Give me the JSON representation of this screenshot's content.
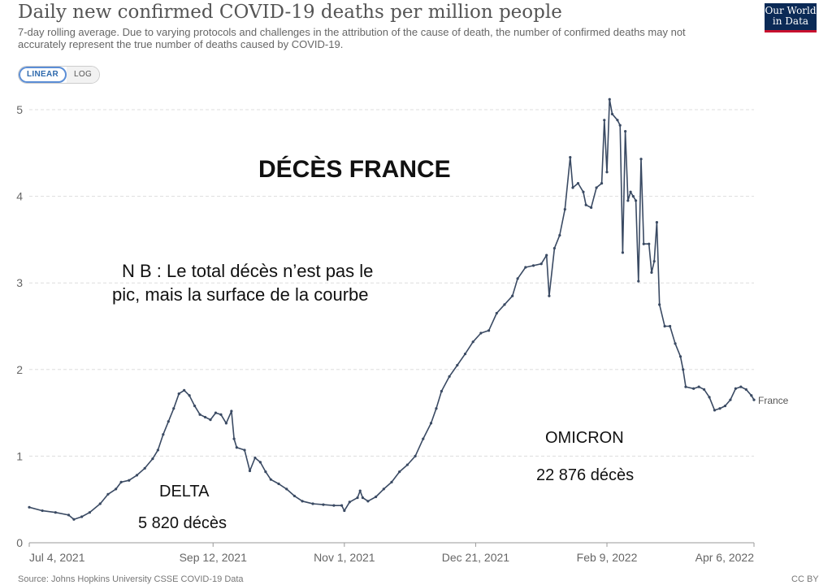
{
  "header": {
    "title": "Daily new confirmed COVID-19 deaths per million people",
    "subtitle": "7-day rolling average. Due to varying protocols and challenges in the attribution of the cause of death, the number of confirmed deaths may not accurately represent the true number of deaths caused by COVID-19.",
    "logo_line1": "Our World",
    "logo_line2": "in Data"
  },
  "scale_toggle": {
    "linear_label": "LINEAR",
    "log_label": "LOG",
    "selected": "linear"
  },
  "footer": {
    "source": "Source: Johns Hopkins University CSSE COVID-19 Data",
    "license": "CC BY"
  },
  "annotations": {
    "main_title": "DÉCÈS  FRANCE",
    "note_line1": "N B : Le total décès n’est pas le",
    "note_line2": "pic, mais la surface de la courbe",
    "delta_label": "DELTA",
    "delta_total": "5 820 décès",
    "omicron_label": "OMICRON",
    "omicron_total": "22 876 décès"
  },
  "colors": {
    "line": "#3a4a63",
    "grid": "#dddddd",
    "axis_text": "#666666",
    "logo_bg": "#0b2a56",
    "logo_accent": "#c8102e",
    "toggle_active": "#2f6aad"
  },
  "chart_data": {
    "type": "line",
    "title": "Daily new confirmed COVID-19 deaths per million people",
    "xlabel": "",
    "ylabel": "",
    "ylim": [
      0,
      5
    ],
    "yticks": [
      0,
      1,
      2,
      3,
      4,
      5
    ],
    "grid": true,
    "x_tick_labels": [
      "Jul 4, 2021",
      "Sep 12, 2021",
      "Nov 1, 2021",
      "Dec 21, 2021",
      "Feb 9, 2022",
      "Apr 6, 2022"
    ],
    "x_tick_days": [
      0,
      70,
      120,
      170,
      220,
      276
    ],
    "x_range_days": [
      0,
      276
    ],
    "series": [
      {
        "name": "France",
        "points": [
          [
            0,
            0.41
          ],
          [
            5,
            0.37
          ],
          [
            10,
            0.35
          ],
          [
            15,
            0.32
          ],
          [
            17,
            0.27
          ],
          [
            20,
            0.3
          ],
          [
            23,
            0.35
          ],
          [
            27,
            0.45
          ],
          [
            30,
            0.56
          ],
          [
            33,
            0.62
          ],
          [
            35,
            0.7
          ],
          [
            38,
            0.72
          ],
          [
            41,
            0.78
          ],
          [
            44,
            0.86
          ],
          [
            47,
            0.97
          ],
          [
            49,
            1.07
          ],
          [
            51,
            1.25
          ],
          [
            53,
            1.4
          ],
          [
            55,
            1.55
          ],
          [
            57,
            1.72
          ],
          [
            59,
            1.76
          ],
          [
            61,
            1.7
          ],
          [
            63,
            1.58
          ],
          [
            65,
            1.48
          ],
          [
            67,
            1.45
          ],
          [
            69,
            1.42
          ],
          [
            71,
            1.5
          ],
          [
            73,
            1.48
          ],
          [
            75,
            1.38
          ],
          [
            77,
            1.52
          ],
          [
            78,
            1.2
          ],
          [
            79,
            1.1
          ],
          [
            82,
            1.07
          ],
          [
            84,
            0.83
          ],
          [
            86,
            0.98
          ],
          [
            88,
            0.93
          ],
          [
            90,
            0.82
          ],
          [
            92,
            0.73
          ],
          [
            95,
            0.68
          ],
          [
            98,
            0.62
          ],
          [
            101,
            0.54
          ],
          [
            104,
            0.48
          ],
          [
            108,
            0.45
          ],
          [
            112,
            0.44
          ],
          [
            116,
            0.43
          ],
          [
            119,
            0.43
          ],
          [
            120,
            0.37
          ],
          [
            122,
            0.47
          ],
          [
            125,
            0.52
          ],
          [
            126,
            0.6
          ],
          [
            127,
            0.52
          ],
          [
            129,
            0.48
          ],
          [
            132,
            0.53
          ],
          [
            135,
            0.62
          ],
          [
            138,
            0.7
          ],
          [
            141,
            0.82
          ],
          [
            144,
            0.9
          ],
          [
            147,
            1.0
          ],
          [
            150,
            1.2
          ],
          [
            153,
            1.38
          ],
          [
            155,
            1.55
          ],
          [
            157,
            1.75
          ],
          [
            160,
            1.92
          ],
          [
            163,
            2.05
          ],
          [
            166,
            2.18
          ],
          [
            169,
            2.32
          ],
          [
            172,
            2.42
          ],
          [
            175,
            2.45
          ],
          [
            178,
            2.65
          ],
          [
            181,
            2.75
          ],
          [
            184,
            2.85
          ],
          [
            186,
            3.05
          ],
          [
            189,
            3.18
          ],
          [
            192,
            3.2
          ],
          [
            195,
            3.22
          ],
          [
            197,
            3.32
          ],
          [
            198,
            2.85
          ],
          [
            200,
            3.4
          ],
          [
            202,
            3.55
          ],
          [
            204,
            3.85
          ],
          [
            206,
            4.45
          ],
          [
            207,
            4.1
          ],
          [
            209,
            4.15
          ],
          [
            211,
            4.05
          ],
          [
            212,
            3.9
          ],
          [
            214,
            3.87
          ],
          [
            216,
            4.1
          ],
          [
            218,
            4.15
          ],
          [
            219,
            4.88
          ],
          [
            220,
            4.28
          ],
          [
            221,
            5.12
          ],
          [
            222,
            4.95
          ],
          [
            224,
            4.88
          ],
          [
            225,
            4.82
          ],
          [
            226,
            3.35
          ],
          [
            227,
            4.75
          ],
          [
            228,
            3.95
          ],
          [
            229,
            4.05
          ],
          [
            230,
            4.0
          ],
          [
            231,
            3.95
          ],
          [
            232,
            3.02
          ],
          [
            233,
            4.43
          ],
          [
            234,
            3.45
          ],
          [
            236,
            3.45
          ],
          [
            237,
            3.12
          ],
          [
            238,
            3.25
          ],
          [
            239,
            3.7
          ],
          [
            240,
            2.75
          ],
          [
            242,
            2.5
          ],
          [
            244,
            2.5
          ],
          [
            246,
            2.3
          ],
          [
            248,
            2.15
          ],
          [
            249,
            2.0
          ],
          [
            250,
            1.8
          ],
          [
            253,
            1.78
          ],
          [
            255,
            1.8
          ],
          [
            257,
            1.77
          ],
          [
            259,
            1.68
          ],
          [
            261,
            1.53
          ],
          [
            263,
            1.55
          ],
          [
            265,
            1.58
          ],
          [
            267,
            1.65
          ],
          [
            269,
            1.78
          ],
          [
            271,
            1.8
          ],
          [
            273,
            1.77
          ],
          [
            275,
            1.7
          ],
          [
            276,
            1.65
          ]
        ]
      }
    ]
  }
}
